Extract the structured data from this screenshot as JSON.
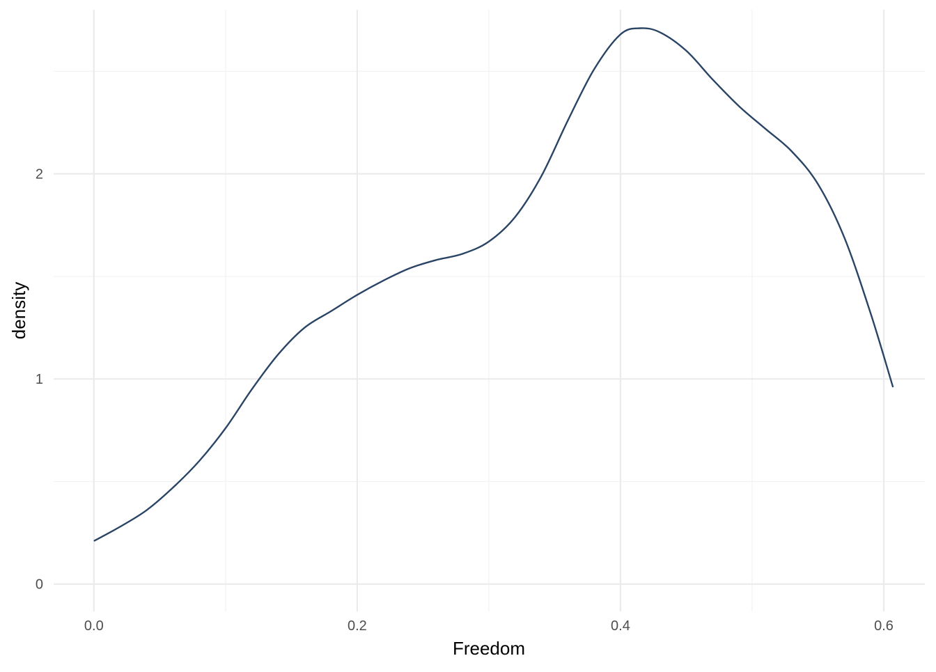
{
  "chart_data": {
    "type": "line",
    "title": "",
    "xlabel": "Freedom",
    "ylabel": "density",
    "xlim": [
      -0.0306,
      0.6312
    ],
    "ylim": [
      -0.1333,
      2.8
    ],
    "x_ticks_major": [
      0.0,
      0.2,
      0.4,
      0.6
    ],
    "x_tick_labels": [
      "0.0",
      "0.2",
      "0.4",
      "0.6"
    ],
    "x_ticks_minor": [
      0.1,
      0.3,
      0.5
    ],
    "y_ticks_major": [
      0,
      1,
      2
    ],
    "y_tick_labels": [
      "0",
      "1",
      "2"
    ],
    "y_ticks_minor": [
      0.5,
      1.5,
      2.5
    ],
    "grid": true,
    "legend": "none",
    "colors": {
      "line": "#2a4466",
      "grid_major": "#ebebeb",
      "grid_minor": "#f2f2f2",
      "tick_text": "#4d4d4d",
      "axis_title": "#000000"
    },
    "series": [
      {
        "x": [
          0.0,
          0.02,
          0.04,
          0.06,
          0.08,
          0.1,
          0.12,
          0.14,
          0.16,
          0.18,
          0.2,
          0.22,
          0.24,
          0.26,
          0.28,
          0.3,
          0.32,
          0.34,
          0.36,
          0.38,
          0.4,
          0.415,
          0.43,
          0.45,
          0.47,
          0.49,
          0.51,
          0.53,
          0.55,
          0.57,
          0.59,
          0.607
        ],
        "y": [
          0.21,
          0.28,
          0.36,
          0.47,
          0.6,
          0.76,
          0.95,
          1.12,
          1.25,
          1.33,
          1.41,
          1.48,
          1.54,
          1.58,
          1.61,
          1.67,
          1.79,
          1.99,
          2.26,
          2.51,
          2.68,
          2.71,
          2.69,
          2.6,
          2.46,
          2.33,
          2.22,
          2.11,
          1.95,
          1.69,
          1.32,
          0.96
        ]
      }
    ]
  }
}
